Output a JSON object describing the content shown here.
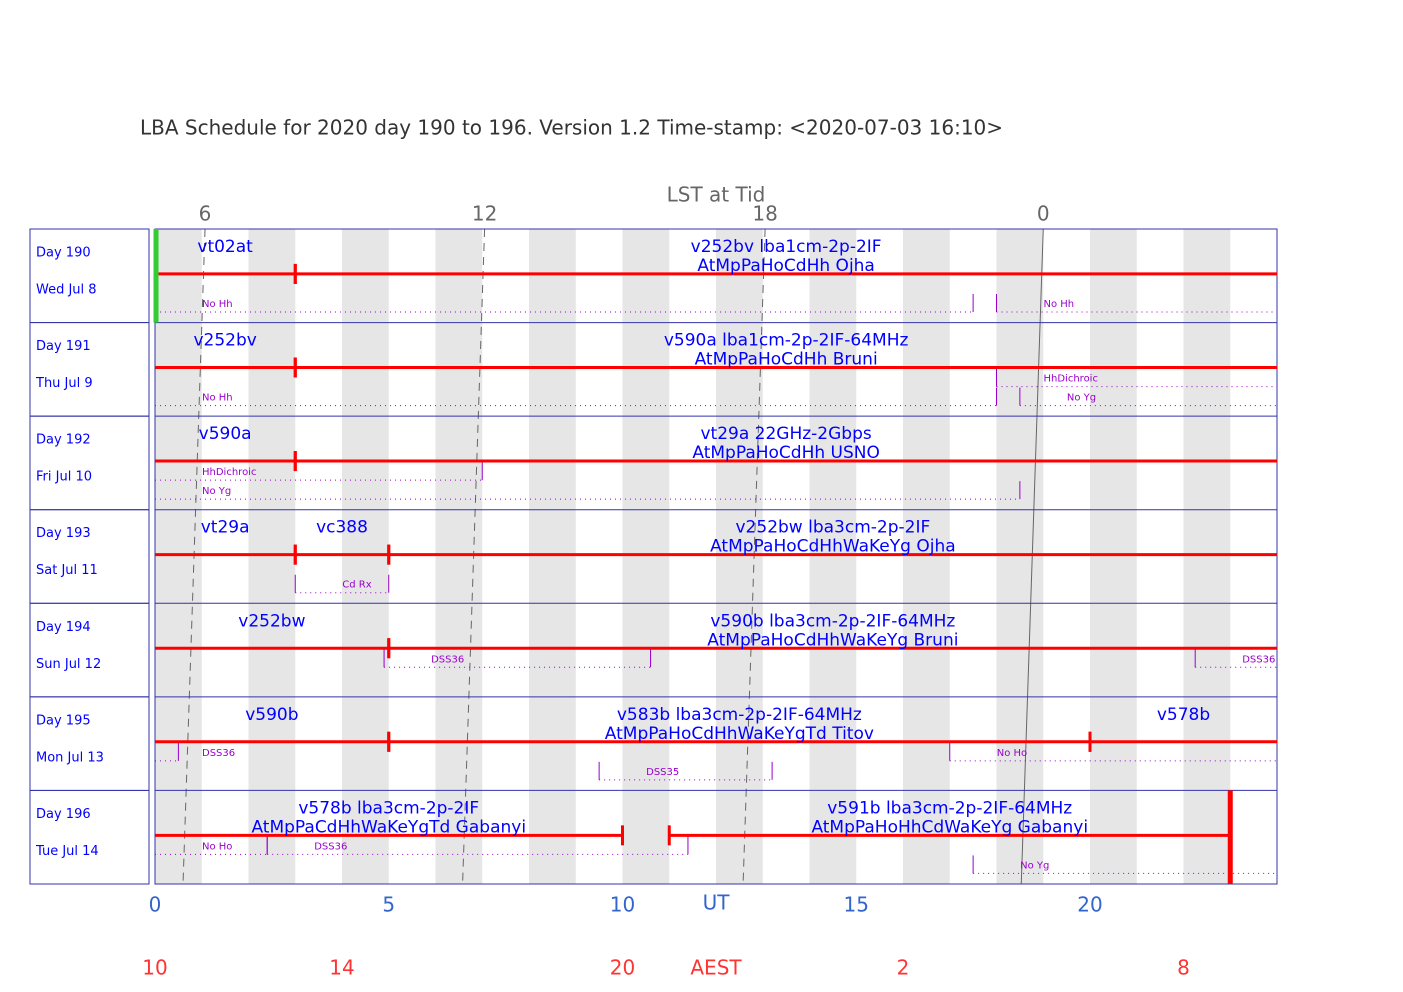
{
  "chart_data": {
    "type": "schedule",
    "title": "LBA Schedule for 2020 day 190 to 196. Version 1.2 Time-stamp: <2020-07-03 16:10>",
    "x_label": "UT",
    "aest_label": "AEST",
    "lst_label": "LST at Tid",
    "xlim": [
      0,
      24
    ],
    "xticks": [
      0,
      5,
      10,
      15,
      20
    ],
    "aest_ticks": [
      {
        "value": 0,
        "label": "10"
      },
      {
        "value": 4,
        "label": "14"
      },
      {
        "value": 10,
        "label": "20"
      },
      {
        "value": 16,
        "label": "2"
      },
      {
        "value": 22,
        "label": "8"
      }
    ],
    "lst_ticks": [
      {
        "value": 1.07,
        "label": "6"
      },
      {
        "value": 7.05,
        "label": "12"
      },
      {
        "value": 13.05,
        "label": "18"
      },
      {
        "value": 19.0,
        "label": "0"
      }
    ],
    "line_color": "#ff0000",
    "text_color": "#0000ff",
    "note_color": "#9900cc",
    "rows": [
      {
        "day": "Day 190",
        "date": "Wed Jul 8",
        "experiments": [
          {
            "line1": "vt02at",
            "start": 0,
            "end": 3
          },
          {
            "line1": "v252bv lba1cm-2p-2IF",
            "line2": "AtMpPaHoCdHh Ojha",
            "start": 3,
            "end": 24
          }
        ],
        "notes": [
          {
            "label": "No Hh",
            "start": 0,
            "end": 17.5,
            "track": 2
          },
          {
            "label": "No Hh",
            "start": 18,
            "end": 24,
            "track": 2
          }
        ]
      },
      {
        "day": "Day 191",
        "date": "Thu Jul 9",
        "experiments": [
          {
            "line1": "v252bv",
            "start": 0,
            "end": 3
          },
          {
            "line1": "v590a lba1cm-2p-2IF-64MHz",
            "line2": "AtMpPaHoCdHh Bruni",
            "start": 3,
            "end": 24
          }
        ],
        "notes": [
          {
            "label": "No Hh",
            "start": 0,
            "end": 18,
            "track": 2
          },
          {
            "label": "HhDichroic",
            "start": 18,
            "end": 24,
            "track": 1
          },
          {
            "label": "No Yg",
            "start": 18.5,
            "end": 24,
            "track": 2
          }
        ]
      },
      {
        "day": "Day 192",
        "date": "Fri Jul 10",
        "experiments": [
          {
            "line1": "v590a",
            "start": 0,
            "end": 3
          },
          {
            "line1": "vt29a 22GHz-2Gbps",
            "line2": "AtMpPaHoCdHh USNO",
            "start": 3,
            "end": 24
          }
        ],
        "notes": [
          {
            "label": "HhDichroic",
            "start": 0,
            "end": 7,
            "track": 1
          },
          {
            "label": "No Yg",
            "start": 0,
            "end": 18.5,
            "track": 2
          }
        ]
      },
      {
        "day": "Day 193",
        "date": "Sat Jul 11",
        "experiments": [
          {
            "line1": "vt29a",
            "start": 0,
            "end": 3
          },
          {
            "line1": "vc388",
            "start": 3,
            "end": 5
          },
          {
            "line1": "v252bw lba3cm-2p-2IF",
            "line2": "AtMpPaHoCdHhWaKeYg Ojha",
            "start": 5,
            "end": 24
          }
        ],
        "notes": [
          {
            "label": "Cd Rx",
            "start": 3,
            "end": 5,
            "track": 2
          }
        ]
      },
      {
        "day": "Day 194",
        "date": "Sun Jul 12",
        "experiments": [
          {
            "line1": "v252bw",
            "start": 0,
            "end": 5
          },
          {
            "line1": "v590b lba3cm-2p-2IF-64MHz",
            "line2": "AtMpPaHoCdHhWaKeYg Bruni",
            "start": 5,
            "end": 24
          }
        ],
        "notes": [
          {
            "label": "DSS36",
            "start": 4.9,
            "end": 10.6,
            "track": 1
          },
          {
            "label": "DSS36",
            "start": 22.25,
            "end": 24,
            "track": 1
          }
        ]
      },
      {
        "day": "Day 195",
        "date": "Mon Jul 13",
        "experiments": [
          {
            "line1": "v590b",
            "start": 0,
            "end": 5
          },
          {
            "line1": "v583b lba3cm-2p-2IF-64MHz",
            "line2": "AtMpPaHoCdHhWaKeYgTd Titov",
            "start": 5,
            "end": 20
          },
          {
            "line1": "v578b",
            "start": 20,
            "end": 24
          }
        ],
        "notes": [
          {
            "label": "DSS36",
            "start": 0,
            "end": 0.5,
            "track": 1
          },
          {
            "label": "No Ho",
            "start": 17,
            "end": 24,
            "track": 1
          },
          {
            "label": "DSS35",
            "start": 9.5,
            "end": 13.2,
            "track": 2
          }
        ]
      },
      {
        "day": "Day 196",
        "date": "Tue Jul 14",
        "experiments": [
          {
            "line1": "v578b lba3cm-2p-2IF",
            "line2": "AtMpPaCdHhWaKeYgTd Gabanyi",
            "start": 0,
            "end": 10
          },
          {
            "line1": "v591b lba3cm-2p-2IF-64MHz",
            "line2": "AtMpPaHoHhCdWaKeYg Gabanyi",
            "start": 11,
            "end": 23
          }
        ],
        "notes": [
          {
            "label": "No Ho",
            "start": 0,
            "end": 2.4,
            "track": 1
          },
          {
            "label": "DSS36",
            "start": 2.4,
            "end": 11.4,
            "track": 1
          },
          {
            "label": "No Yg",
            "start": 17.5,
            "end": 24,
            "track": 2
          }
        ]
      }
    ]
  }
}
